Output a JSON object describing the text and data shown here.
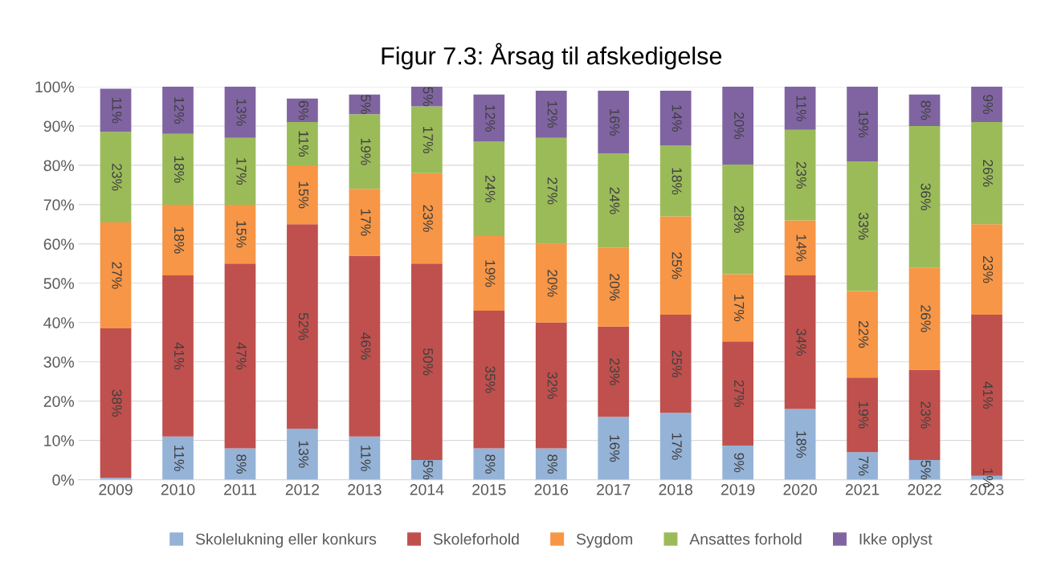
{
  "chart_data": {
    "type": "bar",
    "stacked": true,
    "title": "Figur 7.3: Årsag til afskedigelse",
    "categories": [
      "2009",
      "2010",
      "2011",
      "2012",
      "2013",
      "2014",
      "2015",
      "2016",
      "2017",
      "2018",
      "2019",
      "2020",
      "2021",
      "2022",
      "2023"
    ],
    "series": [
      {
        "name": "Skolelukning eller konkurs",
        "color": "#95b3d7",
        "values": [
          0.5,
          11,
          8,
          13,
          11,
          5,
          8,
          8,
          16,
          17,
          8.7,
          18,
          7,
          5,
          1
        ],
        "value_labels": [
          null,
          "11%",
          "8%",
          "13%",
          "11%",
          "5%",
          "8%",
          "8%",
          "16%",
          "17%",
          "9%",
          "18%",
          "7%",
          "5%",
          "1%"
        ]
      },
      {
        "name": "Skoleforhold",
        "color": "#c0504d",
        "values": [
          38,
          41,
          47,
          52,
          46,
          50,
          35,
          32,
          23,
          25,
          26.5,
          34,
          19,
          23,
          41
        ],
        "value_labels": [
          "38%",
          "41%",
          "47%",
          "52%",
          "46%",
          "50%",
          "35%",
          "32%",
          "23%",
          "25%",
          "27%",
          "34%",
          "19%",
          "23%",
          "41%"
        ]
      },
      {
        "name": "Sygdom",
        "color": "#f79646",
        "values": [
          27,
          18,
          15,
          15,
          17,
          23,
          19,
          20,
          20,
          25,
          17.1,
          14,
          22,
          26,
          23
        ],
        "value_labels": [
          "27%",
          "18%",
          "15%",
          "15%",
          "17%",
          "23%",
          "19%",
          "20%",
          "20%",
          "25%",
          "17%",
          "14%",
          "22%",
          "26%",
          "23%"
        ]
      },
      {
        "name": "Ansattes forhold",
        "color": "#9bbb59",
        "values": [
          23,
          18,
          17,
          11,
          19,
          17,
          24,
          27,
          24,
          18,
          27.9,
          23,
          33,
          36,
          26
        ],
        "value_labels": [
          "23%",
          "18%",
          "17%",
          "11%",
          "19%",
          "17%",
          "24%",
          "27%",
          "24%",
          "18%",
          "28%",
          "23%",
          "33%",
          "36%",
          "26%"
        ]
      },
      {
        "name": "Ikke oplyst",
        "color": "#8064a2",
        "values": [
          11,
          12,
          13,
          6,
          5,
          5,
          12,
          12,
          16,
          14,
          19.8,
          11,
          19,
          8,
          9
        ],
        "value_labels": [
          "11%",
          "12%",
          "13%",
          "6%",
          "5%",
          "5%",
          "12%",
          "12%",
          "16%",
          "14%",
          "20%",
          "11%",
          "19%",
          "8%",
          "9%"
        ]
      }
    ],
    "ylim": [
      0,
      100
    ],
    "yticks": [
      {
        "value": 0,
        "label": "0%"
      },
      {
        "value": 10,
        "label": "10%"
      },
      {
        "value": 20,
        "label": "20%"
      },
      {
        "value": 30,
        "label": "30%"
      },
      {
        "value": 40,
        "label": "40%"
      },
      {
        "value": 50,
        "label": "50%"
      },
      {
        "value": 60,
        "label": "60%"
      },
      {
        "value": 70,
        "label": "70%"
      },
      {
        "value": 80,
        "label": "80%"
      },
      {
        "value": 90,
        "label": "90%"
      },
      {
        "value": 100,
        "label": "100%"
      }
    ],
    "grid": "y",
    "legend": "bottom"
  }
}
